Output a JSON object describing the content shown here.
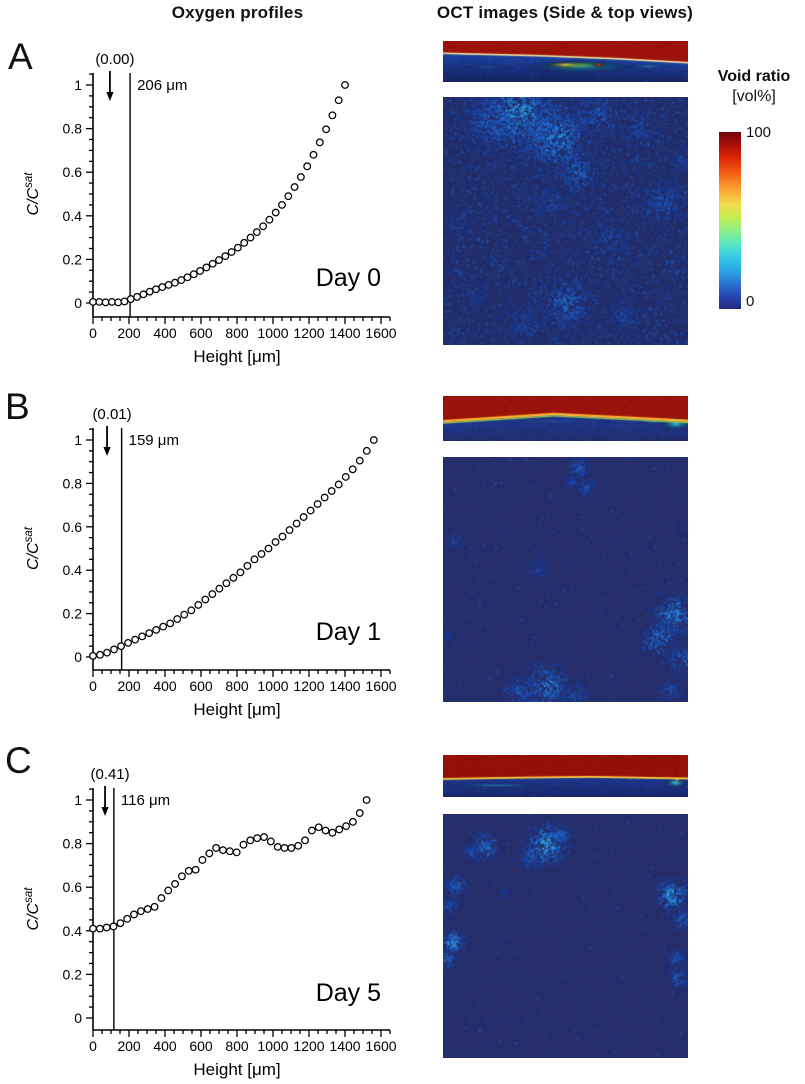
{
  "header": {
    "left_title": "Oxygen profiles",
    "right_title": "OCT images (Side & top views)"
  },
  "panels": [
    {
      "letter": "A"
    },
    {
      "letter": "B"
    },
    {
      "letter": "C"
    }
  ],
  "colorbar": {
    "title": "Void ratio",
    "unit": "[vol%]",
    "max_label": "100",
    "min_label": "0",
    "colormap": "jet",
    "top_color": "#76040f",
    "bottom_color": "#232c7e"
  },
  "axis_style": {
    "xlabel": "Height [μm]",
    "ylabel_base": "C/C",
    "ylabel_sup": "sat",
    "x_ticks": [
      0,
      200,
      400,
      600,
      800,
      1000,
      1200,
      1400,
      1600
    ],
    "y_ticks": [
      0,
      0.2,
      0.4,
      0.6,
      0.8,
      1
    ],
    "x_minor_step": 50,
    "y_minor_step": 0.05,
    "xlim": [
      0,
      1650
    ],
    "ylim": [
      -0.07,
      1.05
    ],
    "grid": false,
    "marker": "open-circle"
  },
  "chart_data": [
    {
      "type": "scatter",
      "title": "Day 0",
      "xlabel": "Height [μm]",
      "ylabel": "C/C^sat",
      "legend": null,
      "annotations": {
        "surface_value": "(0.00)",
        "arrow_x_um": 94,
        "vline_x_um": 206,
        "vline_label": "206 μm",
        "day_label": "Day 0"
      },
      "x": [
        0,
        35,
        70,
        105,
        140,
        175,
        210,
        245,
        280,
        315,
        350,
        385,
        420,
        455,
        490,
        525,
        560,
        595,
        630,
        665,
        700,
        735,
        770,
        805,
        840,
        875,
        910,
        945,
        980,
        1015,
        1050,
        1085,
        1120,
        1155,
        1190,
        1225,
        1260,
        1295,
        1330,
        1365,
        1400
      ],
      "y": [
        0.005,
        0.005,
        0.003,
        0.005,
        0.003,
        0.007,
        0.018,
        0.028,
        0.04,
        0.052,
        0.063,
        0.073,
        0.083,
        0.093,
        0.105,
        0.118,
        0.132,
        0.147,
        0.163,
        0.18,
        0.197,
        0.215,
        0.234,
        0.254,
        0.276,
        0.3,
        0.325,
        0.352,
        0.382,
        0.415,
        0.45,
        0.49,
        0.532,
        0.578,
        0.627,
        0.68,
        0.737,
        0.797,
        0.861,
        0.93,
        1.0
      ]
    },
    {
      "type": "scatter",
      "title": "Day 1",
      "xlabel": "Height [μm]",
      "ylabel": "C/C^sat",
      "legend": null,
      "annotations": {
        "surface_value": "(0.01)",
        "arrow_x_um": 78,
        "vline_x_um": 159,
        "vline_label": "159 μm",
        "day_label": "Day 1"
      },
      "x": [
        0,
        39,
        78,
        117,
        156,
        195,
        234,
        273,
        312,
        351,
        390,
        429,
        468,
        507,
        546,
        585,
        624,
        663,
        702,
        741,
        780,
        819,
        858,
        897,
        936,
        975,
        1014,
        1053,
        1092,
        1131,
        1170,
        1209,
        1248,
        1287,
        1326,
        1365,
        1404,
        1443,
        1482,
        1521,
        1560
      ],
      "y": [
        0.005,
        0.01,
        0.02,
        0.035,
        0.05,
        0.065,
        0.08,
        0.095,
        0.11,
        0.125,
        0.14,
        0.155,
        0.175,
        0.195,
        0.215,
        0.24,
        0.265,
        0.29,
        0.315,
        0.34,
        0.365,
        0.39,
        0.42,
        0.45,
        0.475,
        0.5,
        0.53,
        0.555,
        0.585,
        0.615,
        0.645,
        0.675,
        0.705,
        0.735,
        0.765,
        0.795,
        0.83,
        0.865,
        0.905,
        0.95,
        1.0
      ]
    },
    {
      "type": "scatter",
      "title": "Day 5",
      "xlabel": "Height [μm]",
      "ylabel": "C/C^sat",
      "legend": null,
      "annotations": {
        "surface_value": "(0.41)",
        "arrow_x_um": 67,
        "vline_x_um": 116,
        "vline_label": "116 μm",
        "day_label": "Day 5"
      },
      "x": [
        0,
        38,
        76,
        114,
        152,
        190,
        228,
        266,
        304,
        342,
        380,
        418,
        456,
        494,
        532,
        570,
        608,
        646,
        684,
        722,
        760,
        798,
        836,
        874,
        912,
        950,
        988,
        1026,
        1064,
        1102,
        1140,
        1178,
        1216,
        1254,
        1292,
        1330,
        1368,
        1406,
        1444,
        1482,
        1520
      ],
      "y": [
        0.41,
        0.41,
        0.415,
        0.42,
        0.435,
        0.455,
        0.475,
        0.49,
        0.5,
        0.51,
        0.55,
        0.585,
        0.615,
        0.65,
        0.675,
        0.68,
        0.725,
        0.755,
        0.78,
        0.77,
        0.765,
        0.76,
        0.795,
        0.815,
        0.825,
        0.83,
        0.81,
        0.785,
        0.78,
        0.78,
        0.79,
        0.815,
        0.86,
        0.875,
        0.86,
        0.85,
        0.865,
        0.88,
        0.9,
        0.94,
        1.0
      ]
    }
  ],
  "oct": {
    "side_views": [
      {
        "size": [
          245,
          41
        ],
        "red": "#9c120b",
        "line": "#f6e6a0",
        "line_w": 1.6,
        "line2": null,
        "blue_top": "#1d42a2",
        "blue_bottom": "#15235f",
        "boundary": [
          [
            0,
            0.3
          ],
          [
            0.4,
            0.36
          ],
          [
            0.7,
            0.43
          ],
          [
            1,
            0.53
          ]
        ],
        "features": [
          [
            0.56,
            0.62,
            0.24,
            0.17,
            "#22c4e6",
            0.85
          ],
          [
            0.54,
            0.59,
            0.15,
            0.11,
            "#8ade4a",
            0.85
          ],
          [
            0.5,
            0.58,
            0.08,
            0.08,
            "#ffd84a",
            0.9
          ],
          [
            0.635,
            0.58,
            0.03,
            0.06,
            "#dd2e10",
            0.95
          ],
          [
            0.84,
            0.62,
            0.1,
            0.08,
            "#2fa0dd",
            0.55
          ],
          [
            0.18,
            0.64,
            0.12,
            0.07,
            "#2a64c4",
            0.5
          ]
        ]
      },
      {
        "size": [
          245,
          45
        ],
        "red": "#9c130b",
        "line": "#ffb retention030",
        "line_w": 2.4,
        "line2": "#a8dc48",
        "blue_top": "#1d3a94",
        "blue_bottom": "#222c6c",
        "boundary": [
          [
            0,
            0.56
          ],
          [
            0.45,
            0.4
          ],
          [
            0.75,
            0.48
          ],
          [
            1,
            0.55
          ]
        ],
        "features": [
          [
            0.95,
            0.62,
            0.07,
            0.17,
            "#2fd0e8",
            0.9
          ],
          [
            0.86,
            0.56,
            0.07,
            0.09,
            "#30a8dc",
            0.6
          ],
          [
            0.45,
            0.56,
            0.3,
            0.08,
            "#3470cc",
            0.35
          ],
          [
            0.25,
            0.78,
            0.18,
            0.05,
            "#2a58b8",
            0.3
          ]
        ]
      },
      {
        "size": [
          245,
          42
        ],
        "red": "#921109",
        "line": "#ffd040",
        "line_w": 1.8,
        "line2": null,
        "blue_top": "#1d3890",
        "blue_bottom": "#192769",
        "boundary": [
          [
            0,
            0.57
          ],
          [
            0.3,
            0.54
          ],
          [
            0.6,
            0.52
          ],
          [
            1,
            0.56
          ]
        ],
        "features": [
          [
            0.22,
            0.72,
            0.22,
            0.06,
            "#2fb4dd",
            0.6
          ],
          [
            0.95,
            0.66,
            0.05,
            0.14,
            "#3fdff2",
            0.95
          ],
          [
            0.955,
            0.58,
            0.02,
            0.05,
            "#ffd84a",
            0.9
          ],
          [
            0.6,
            0.78,
            0.18,
            0.05,
            "#22449c",
            0.3
          ]
        ]
      }
    ],
    "top_views": [
      {
        "size": [
          245,
          248
        ],
        "base": "#222c68",
        "mottle": 6500,
        "blobs": [
          [
            0.3,
            0.06,
            0.2,
            0.85
          ],
          [
            0.18,
            0.1,
            0.12,
            0.6
          ],
          [
            0.46,
            0.16,
            0.16,
            0.8
          ],
          [
            0.62,
            0.07,
            0.12,
            0.55
          ],
          [
            0.8,
            0.12,
            0.1,
            0.45
          ],
          [
            0.55,
            0.3,
            0.1,
            0.6
          ],
          [
            0.44,
            0.42,
            0.09,
            0.45
          ],
          [
            0.9,
            0.42,
            0.11,
            0.55
          ],
          [
            0.68,
            0.57,
            0.1,
            0.45
          ],
          [
            0.5,
            0.83,
            0.14,
            0.6
          ],
          [
            0.33,
            0.92,
            0.1,
            0.45
          ],
          [
            0.73,
            0.88,
            0.09,
            0.4
          ],
          [
            0.06,
            0.5,
            0.07,
            0.3
          ],
          [
            0.12,
            0.8,
            0.08,
            0.3
          ],
          [
            0.97,
            0.25,
            0.07,
            0.4
          ]
        ]
      },
      {
        "size": [
          245,
          245
        ],
        "base": "#252e6a",
        "mottle": 800,
        "blobs": [
          [
            0.55,
            0.04,
            0.05,
            0.6
          ],
          [
            0.58,
            0.12,
            0.045,
            0.5
          ],
          [
            0.52,
            0.1,
            0.03,
            0.4
          ],
          [
            0.04,
            0.34,
            0.05,
            0.35
          ],
          [
            0.38,
            0.46,
            0.045,
            0.35
          ],
          [
            0.4,
            0.43,
            0.03,
            0.3
          ],
          [
            0.94,
            0.64,
            0.1,
            0.8
          ],
          [
            0.88,
            0.74,
            0.09,
            0.7
          ],
          [
            0.97,
            0.82,
            0.08,
            0.6
          ],
          [
            0.93,
            0.95,
            0.07,
            0.5
          ],
          [
            0.42,
            0.93,
            0.11,
            0.75
          ],
          [
            0.31,
            0.96,
            0.08,
            0.55
          ],
          [
            0.54,
            0.97,
            0.07,
            0.5
          ],
          [
            0.02,
            0.73,
            0.025,
            0.3
          ]
        ]
      },
      {
        "size": [
          245,
          244
        ],
        "base": "#252e6a",
        "mottle": 550,
        "blobs": [
          [
            0.17,
            0.13,
            0.07,
            0.7
          ],
          [
            0.11,
            0.16,
            0.05,
            0.5
          ],
          [
            0.42,
            0.12,
            0.1,
            0.95
          ],
          [
            0.35,
            0.17,
            0.06,
            0.6
          ],
          [
            0.48,
            0.08,
            0.05,
            0.6
          ],
          [
            0.05,
            0.29,
            0.06,
            0.6
          ],
          [
            0.02,
            0.38,
            0.05,
            0.5
          ],
          [
            0.04,
            0.52,
            0.055,
            0.9
          ],
          [
            0.01,
            0.59,
            0.045,
            0.7
          ],
          [
            0.93,
            0.33,
            0.08,
            0.9
          ],
          [
            0.97,
            0.43,
            0.05,
            0.6
          ],
          [
            0.95,
            0.59,
            0.045,
            0.55
          ],
          [
            0.96,
            0.67,
            0.05,
            0.6
          ],
          [
            0.25,
            0.32,
            0.03,
            0.3
          ]
        ]
      }
    ]
  }
}
